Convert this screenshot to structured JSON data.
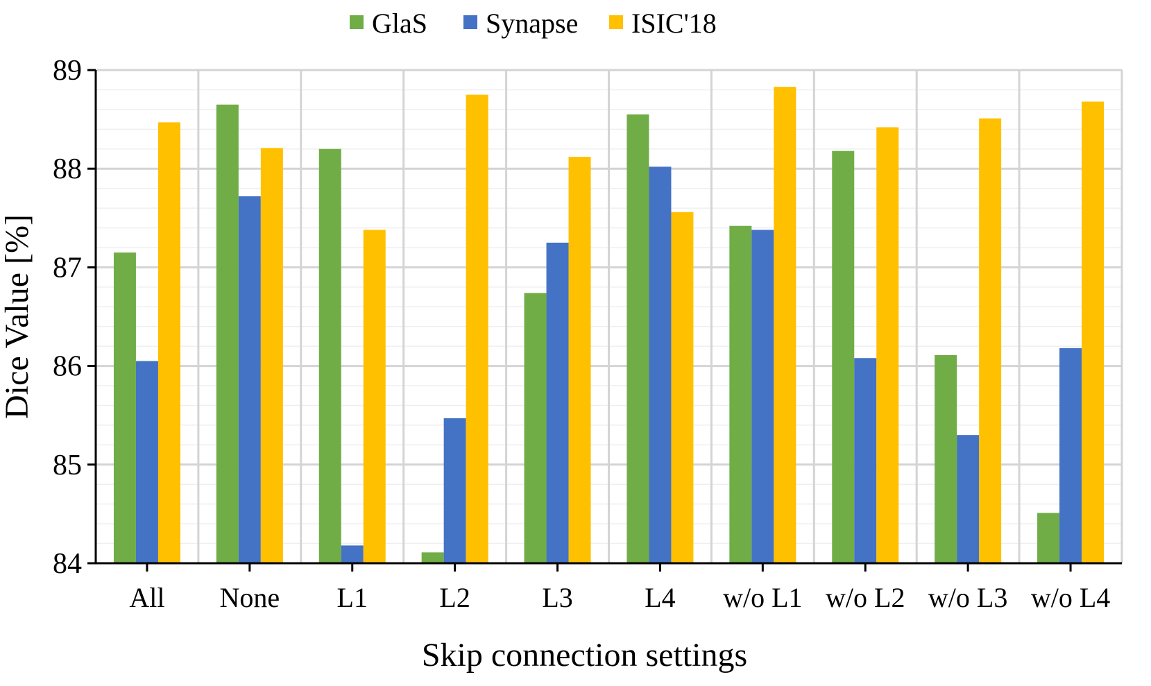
{
  "chart_data": {
    "type": "bar",
    "title": "",
    "xlabel": "Skip connection settings",
    "ylabel": "Dice Value [%]",
    "ylim": [
      84,
      89
    ],
    "yticks": [
      84,
      85,
      86,
      87,
      88,
      89
    ],
    "grid": true,
    "legend_position": "top-center",
    "categories": [
      "All",
      "None",
      "L1",
      "L2",
      "L3",
      "L4",
      "w/o L1",
      "w/o L2",
      "w/o L3",
      "w/o L4"
    ],
    "series": [
      {
        "name": "GlaS",
        "color": "#70AD47",
        "values": [
          87.15,
          88.65,
          88.2,
          84.11,
          86.74,
          88.55,
          87.42,
          88.18,
          86.11,
          84.51
        ]
      },
      {
        "name": "Synapse",
        "color": "#4472C4",
        "values": [
          86.05,
          87.72,
          84.18,
          85.47,
          87.25,
          88.02,
          87.38,
          86.08,
          85.3,
          86.18
        ]
      },
      {
        "name": "ISIC'18",
        "color": "#FFC000",
        "values": [
          88.47,
          88.21,
          87.38,
          88.75,
          88.12,
          87.56,
          88.83,
          88.42,
          88.51,
          88.68
        ]
      }
    ]
  }
}
